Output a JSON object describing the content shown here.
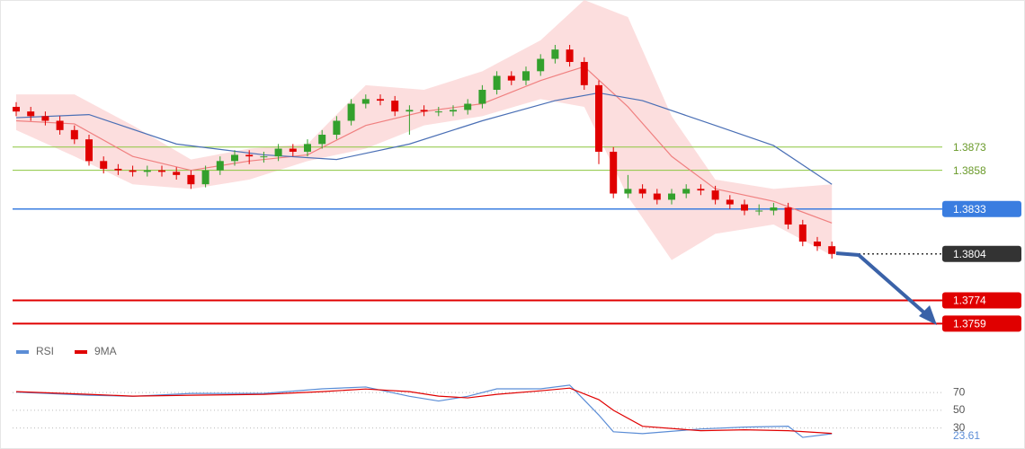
{
  "chart_data": [
    {
      "type": "candlestick",
      "ylim": [
        1.3754,
        1.3968
      ],
      "up_color": "#33a02c",
      "down_color": "#e00000",
      "open": [
        1.3899,
        1.3896,
        1.3893,
        1.389,
        1.3884,
        1.3878,
        1.3864,
        1.3859,
        1.3858,
        1.3857,
        1.3858,
        1.3857,
        1.3855,
        1.3849,
        1.3858,
        1.3864,
        1.3868,
        1.3867,
        1.3867,
        1.3872,
        1.387,
        1.3875,
        1.3881,
        1.389,
        1.3901,
        1.3904,
        1.3903,
        1.3896,
        1.3897,
        1.3896,
        1.3896,
        1.3897,
        1.3901,
        1.391,
        1.3919,
        1.3916,
        1.3922,
        1.393,
        1.3936,
        1.3928,
        1.3913,
        1.387,
        1.3843,
        1.3846,
        1.3843,
        1.3839,
        1.3843,
        1.3846,
        1.3845,
        1.3839,
        1.3836,
        1.3832,
        1.3832,
        1.3834,
        1.3823,
        1.3812,
        1.3809
      ],
      "high": [
        1.3902,
        1.3899,
        1.3896,
        1.3893,
        1.3887,
        1.3881,
        1.3867,
        1.3862,
        1.3861,
        1.3861,
        1.3861,
        1.386,
        1.3858,
        1.3861,
        1.3867,
        1.3871,
        1.3871,
        1.387,
        1.3875,
        1.3875,
        1.3878,
        1.3884,
        1.3893,
        1.3904,
        1.3907,
        1.3907,
        1.3906,
        1.39,
        1.39,
        1.3899,
        1.39,
        1.3904,
        1.3913,
        1.3922,
        1.3922,
        1.3925,
        1.3933,
        1.3939,
        1.3939,
        1.3931,
        1.3916,
        1.3873,
        1.3855,
        1.3849,
        1.3846,
        1.3846,
        1.3849,
        1.3849,
        1.3848,
        1.3842,
        1.3839,
        1.3836,
        1.3837,
        1.3837,
        1.3826,
        1.3815,
        1.3812
      ],
      "low": [
        1.3893,
        1.389,
        1.3887,
        1.3881,
        1.3875,
        1.3861,
        1.3856,
        1.3855,
        1.3854,
        1.3854,
        1.3854,
        1.3852,
        1.3846,
        1.3847,
        1.3855,
        1.3861,
        1.3862,
        1.3863,
        1.3864,
        1.3867,
        1.3867,
        1.3872,
        1.3878,
        1.3887,
        1.3898,
        1.39,
        1.3893,
        1.3881,
        1.3893,
        1.3893,
        1.3893,
        1.3894,
        1.3898,
        1.3907,
        1.3913,
        1.3913,
        1.3919,
        1.3927,
        1.3925,
        1.391,
        1.3862,
        1.384,
        1.384,
        1.384,
        1.3836,
        1.3836,
        1.384,
        1.3842,
        1.3836,
        1.3833,
        1.3829,
        1.3829,
        1.3829,
        1.382,
        1.3809,
        1.3806,
        1.3801
      ],
      "close": [
        1.3896,
        1.3893,
        1.389,
        1.3884,
        1.3878,
        1.3864,
        1.3859,
        1.3858,
        1.3857,
        1.3858,
        1.3857,
        1.3855,
        1.3849,
        1.3858,
        1.3864,
        1.3868,
        1.3867,
        1.3867,
        1.3872,
        1.387,
        1.3875,
        1.3881,
        1.389,
        1.3901,
        1.3904,
        1.3903,
        1.3896,
        1.3897,
        1.3896,
        1.3896,
        1.3897,
        1.3901,
        1.391,
        1.3919,
        1.3916,
        1.3922,
        1.393,
        1.3936,
        1.3928,
        1.3913,
        1.387,
        1.3843,
        1.3846,
        1.3843,
        1.3839,
        1.3843,
        1.3846,
        1.3845,
        1.3839,
        1.3836,
        1.3832,
        1.3832,
        1.3834,
        1.3823,
        1.3812,
        1.3809,
        1.3804
      ],
      "band": {
        "color": "#fbd3d3",
        "x": [
          0,
          4,
          8,
          12,
          16,
          20,
          24,
          28,
          32,
          36,
          39,
          42,
          45,
          48,
          52,
          56
        ],
        "upper": [
          1.3907,
          1.3907,
          1.3887,
          1.3865,
          1.3872,
          1.3875,
          1.3913,
          1.391,
          1.3922,
          1.3942,
          1.3968,
          1.3957,
          1.3893,
          1.3852,
          1.3846,
          1.3849
        ],
        "lower": [
          1.3884,
          1.3867,
          1.3849,
          1.3846,
          1.3852,
          1.3864,
          1.3872,
          1.3887,
          1.3893,
          1.3904,
          1.3899,
          1.3841,
          1.38,
          1.3817,
          1.3823,
          1.3803
        ]
      },
      "lines": [
        {
          "color": "#f08080",
          "x": [
            0,
            4,
            8,
            12,
            16,
            20,
            24,
            28,
            32,
            36,
            39,
            42,
            45,
            48,
            52,
            56
          ],
          "values": [
            1.389,
            1.3888,
            1.3867,
            1.3858,
            1.3864,
            1.3868,
            1.3887,
            1.3896,
            1.3901,
            1.3916,
            1.3925,
            1.3899,
            1.3867,
            1.3846,
            1.3838,
            1.3824
          ]
        },
        {
          "color": "#4a6fb5",
          "x": [
            0,
            5,
            11,
            17,
            22,
            27,
            32,
            37,
            40,
            43,
            48,
            52,
            56
          ],
          "values": [
            1.3892,
            1.3894,
            1.3875,
            1.3868,
            1.3865,
            1.3875,
            1.389,
            1.3903,
            1.3908,
            1.3903,
            1.3887,
            1.3874,
            1.3849
          ]
        }
      ],
      "levels": [
        {
          "value": 1.3873,
          "color": "#8cc63f",
          "text_color": "#6a9a2a",
          "style": "solid",
          "label_box": false
        },
        {
          "value": 1.3858,
          "color": "#8cc63f",
          "text_color": "#6a9a2a",
          "style": "solid",
          "label_box": false
        },
        {
          "value": 1.3833,
          "color": "#3a7de0",
          "text_color": "#ffffff",
          "style": "solid",
          "label_box": true
        },
        {
          "value": 1.3804,
          "color": "#333333",
          "text_color": "#ffffff",
          "style": "dotted",
          "label_box": true
        },
        {
          "value": 1.3774,
          "color": "#e00000",
          "text_color": "#ffffff",
          "style": "solid",
          "label_box": true
        },
        {
          "value": 1.3759,
          "color": "#e00000",
          "text_color": "#ffffff",
          "style": "solid",
          "label_box": true
        }
      ]
    },
    {
      "type": "line",
      "ylim": [
        15,
        100
      ],
      "yticks": [
        70,
        50,
        30
      ],
      "series": [
        {
          "name": "RSI",
          "color": "#5b8dd6",
          "x": [
            0,
            5,
            8,
            12,
            17,
            21,
            24,
            27,
            29,
            31,
            33,
            36,
            38,
            40,
            41,
            43,
            47,
            50,
            53,
            54,
            56
          ],
          "values": [
            70.5,
            67,
            65.8,
            69,
            69,
            74.2,
            76.3,
            65.8,
            60.5,
            65.8,
            74.2,
            74.2,
            78.4,
            44.7,
            25.8,
            23.7,
            29,
            31.1,
            32.1,
            19.5,
            23.61
          ]
        },
        {
          "name": "9MA",
          "color": "#e00000",
          "x": [
            0,
            5,
            8,
            12,
            17,
            21,
            24,
            27,
            29,
            31,
            33,
            36,
            38,
            40,
            41,
            43,
            47,
            50,
            53,
            54,
            56
          ],
          "values": [
            71,
            68,
            66,
            67,
            68,
            71,
            74,
            71,
            66,
            64,
            68,
            72,
            75,
            62,
            50,
            32,
            27,
            28,
            27,
            26,
            24
          ]
        }
      ]
    }
  ]
}
